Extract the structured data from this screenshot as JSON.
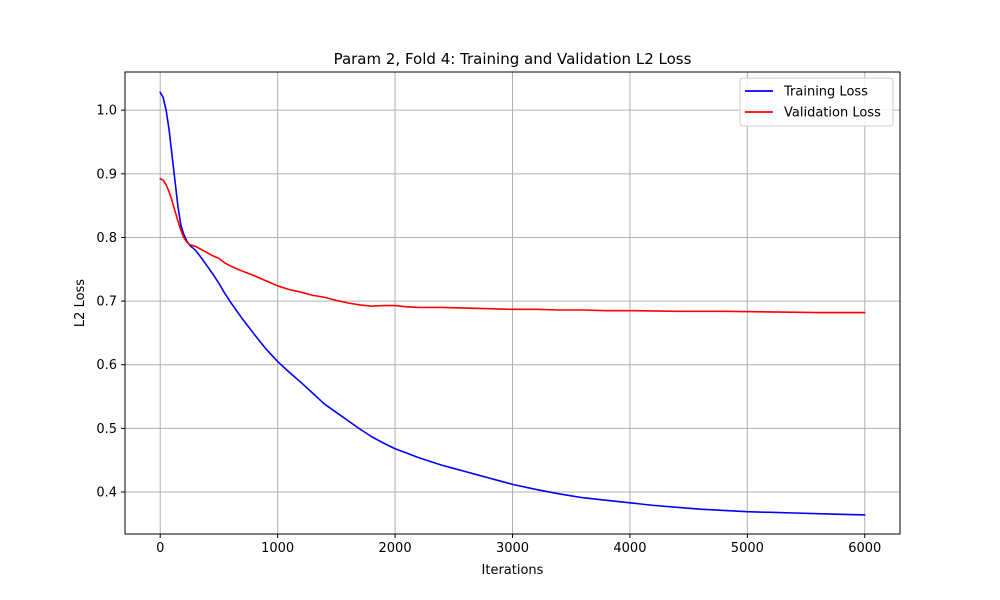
{
  "chart_data": {
    "type": "line",
    "title": "Param 2, Fold 4: Training and Validation L2 Loss",
    "xlabel": "Iterations",
    "ylabel": "L2 Loss",
    "xlim": [
      -300,
      6300
    ],
    "ylim": [
      0.334,
      1.06
    ],
    "x_ticks": [
      0,
      1000,
      2000,
      3000,
      4000,
      5000,
      6000
    ],
    "x_tick_labels": [
      "0",
      "1000",
      "2000",
      "3000",
      "4000",
      "5000",
      "6000"
    ],
    "y_ticks": [
      0.4,
      0.5,
      0.6,
      0.7,
      0.8,
      0.9,
      1.0
    ],
    "y_tick_labels": [
      "0.4",
      "0.5",
      "0.6",
      "0.7",
      "0.8",
      "0.9",
      "1.0"
    ],
    "grid": true,
    "legend_position": "top-right",
    "series": [
      {
        "name": "Training Loss",
        "color": "#0000ff",
        "x": [
          0,
          25,
          50,
          75,
          100,
          125,
          150,
          175,
          200,
          225,
          250,
          300,
          350,
          400,
          450,
          500,
          550,
          600,
          700,
          800,
          900,
          1000,
          1100,
          1200,
          1300,
          1400,
          1500,
          1600,
          1700,
          1800,
          1900,
          2000,
          2100,
          2200,
          2300,
          2400,
          2500,
          2600,
          2700,
          2800,
          2900,
          3000,
          3200,
          3400,
          3600,
          3800,
          4000,
          4200,
          4400,
          4600,
          4800,
          5000,
          5200,
          5400,
          5600,
          5800,
          6000
        ],
        "y": [
          1.028,
          1.02,
          1.0,
          0.97,
          0.93,
          0.89,
          0.85,
          0.82,
          0.805,
          0.795,
          0.788,
          0.78,
          0.768,
          0.755,
          0.742,
          0.728,
          0.712,
          0.698,
          0.672,
          0.648,
          0.625,
          0.605,
          0.588,
          0.572,
          0.555,
          0.538,
          0.525,
          0.512,
          0.499,
          0.487,
          0.477,
          0.468,
          0.461,
          0.454,
          0.448,
          0.442,
          0.437,
          0.432,
          0.427,
          0.422,
          0.417,
          0.412,
          0.404,
          0.397,
          0.391,
          0.387,
          0.383,
          0.379,
          0.376,
          0.373,
          0.371,
          0.369,
          0.368,
          0.367,
          0.366,
          0.365,
          0.364
        ]
      },
      {
        "name": "Validation Loss",
        "color": "#ff0000",
        "x": [
          0,
          25,
          50,
          75,
          100,
          125,
          150,
          175,
          200,
          225,
          250,
          300,
          350,
          400,
          450,
          500,
          550,
          600,
          700,
          800,
          900,
          1000,
          1100,
          1200,
          1300,
          1400,
          1500,
          1600,
          1700,
          1800,
          1900,
          2000,
          2100,
          2200,
          2400,
          2600,
          2800,
          3000,
          3200,
          3400,
          3600,
          3800,
          4000,
          4400,
          4800,
          5200,
          5600,
          6000
        ],
        "y": [
          0.892,
          0.89,
          0.883,
          0.872,
          0.858,
          0.842,
          0.826,
          0.812,
          0.8,
          0.793,
          0.789,
          0.786,
          0.781,
          0.776,
          0.771,
          0.767,
          0.76,
          0.755,
          0.747,
          0.74,
          0.732,
          0.724,
          0.718,
          0.714,
          0.709,
          0.706,
          0.701,
          0.697,
          0.694,
          0.692,
          0.693,
          0.693,
          0.691,
          0.69,
          0.69,
          0.689,
          0.688,
          0.687,
          0.687,
          0.686,
          0.686,
          0.685,
          0.685,
          0.684,
          0.684,
          0.683,
          0.682,
          0.682
        ]
      }
    ]
  }
}
